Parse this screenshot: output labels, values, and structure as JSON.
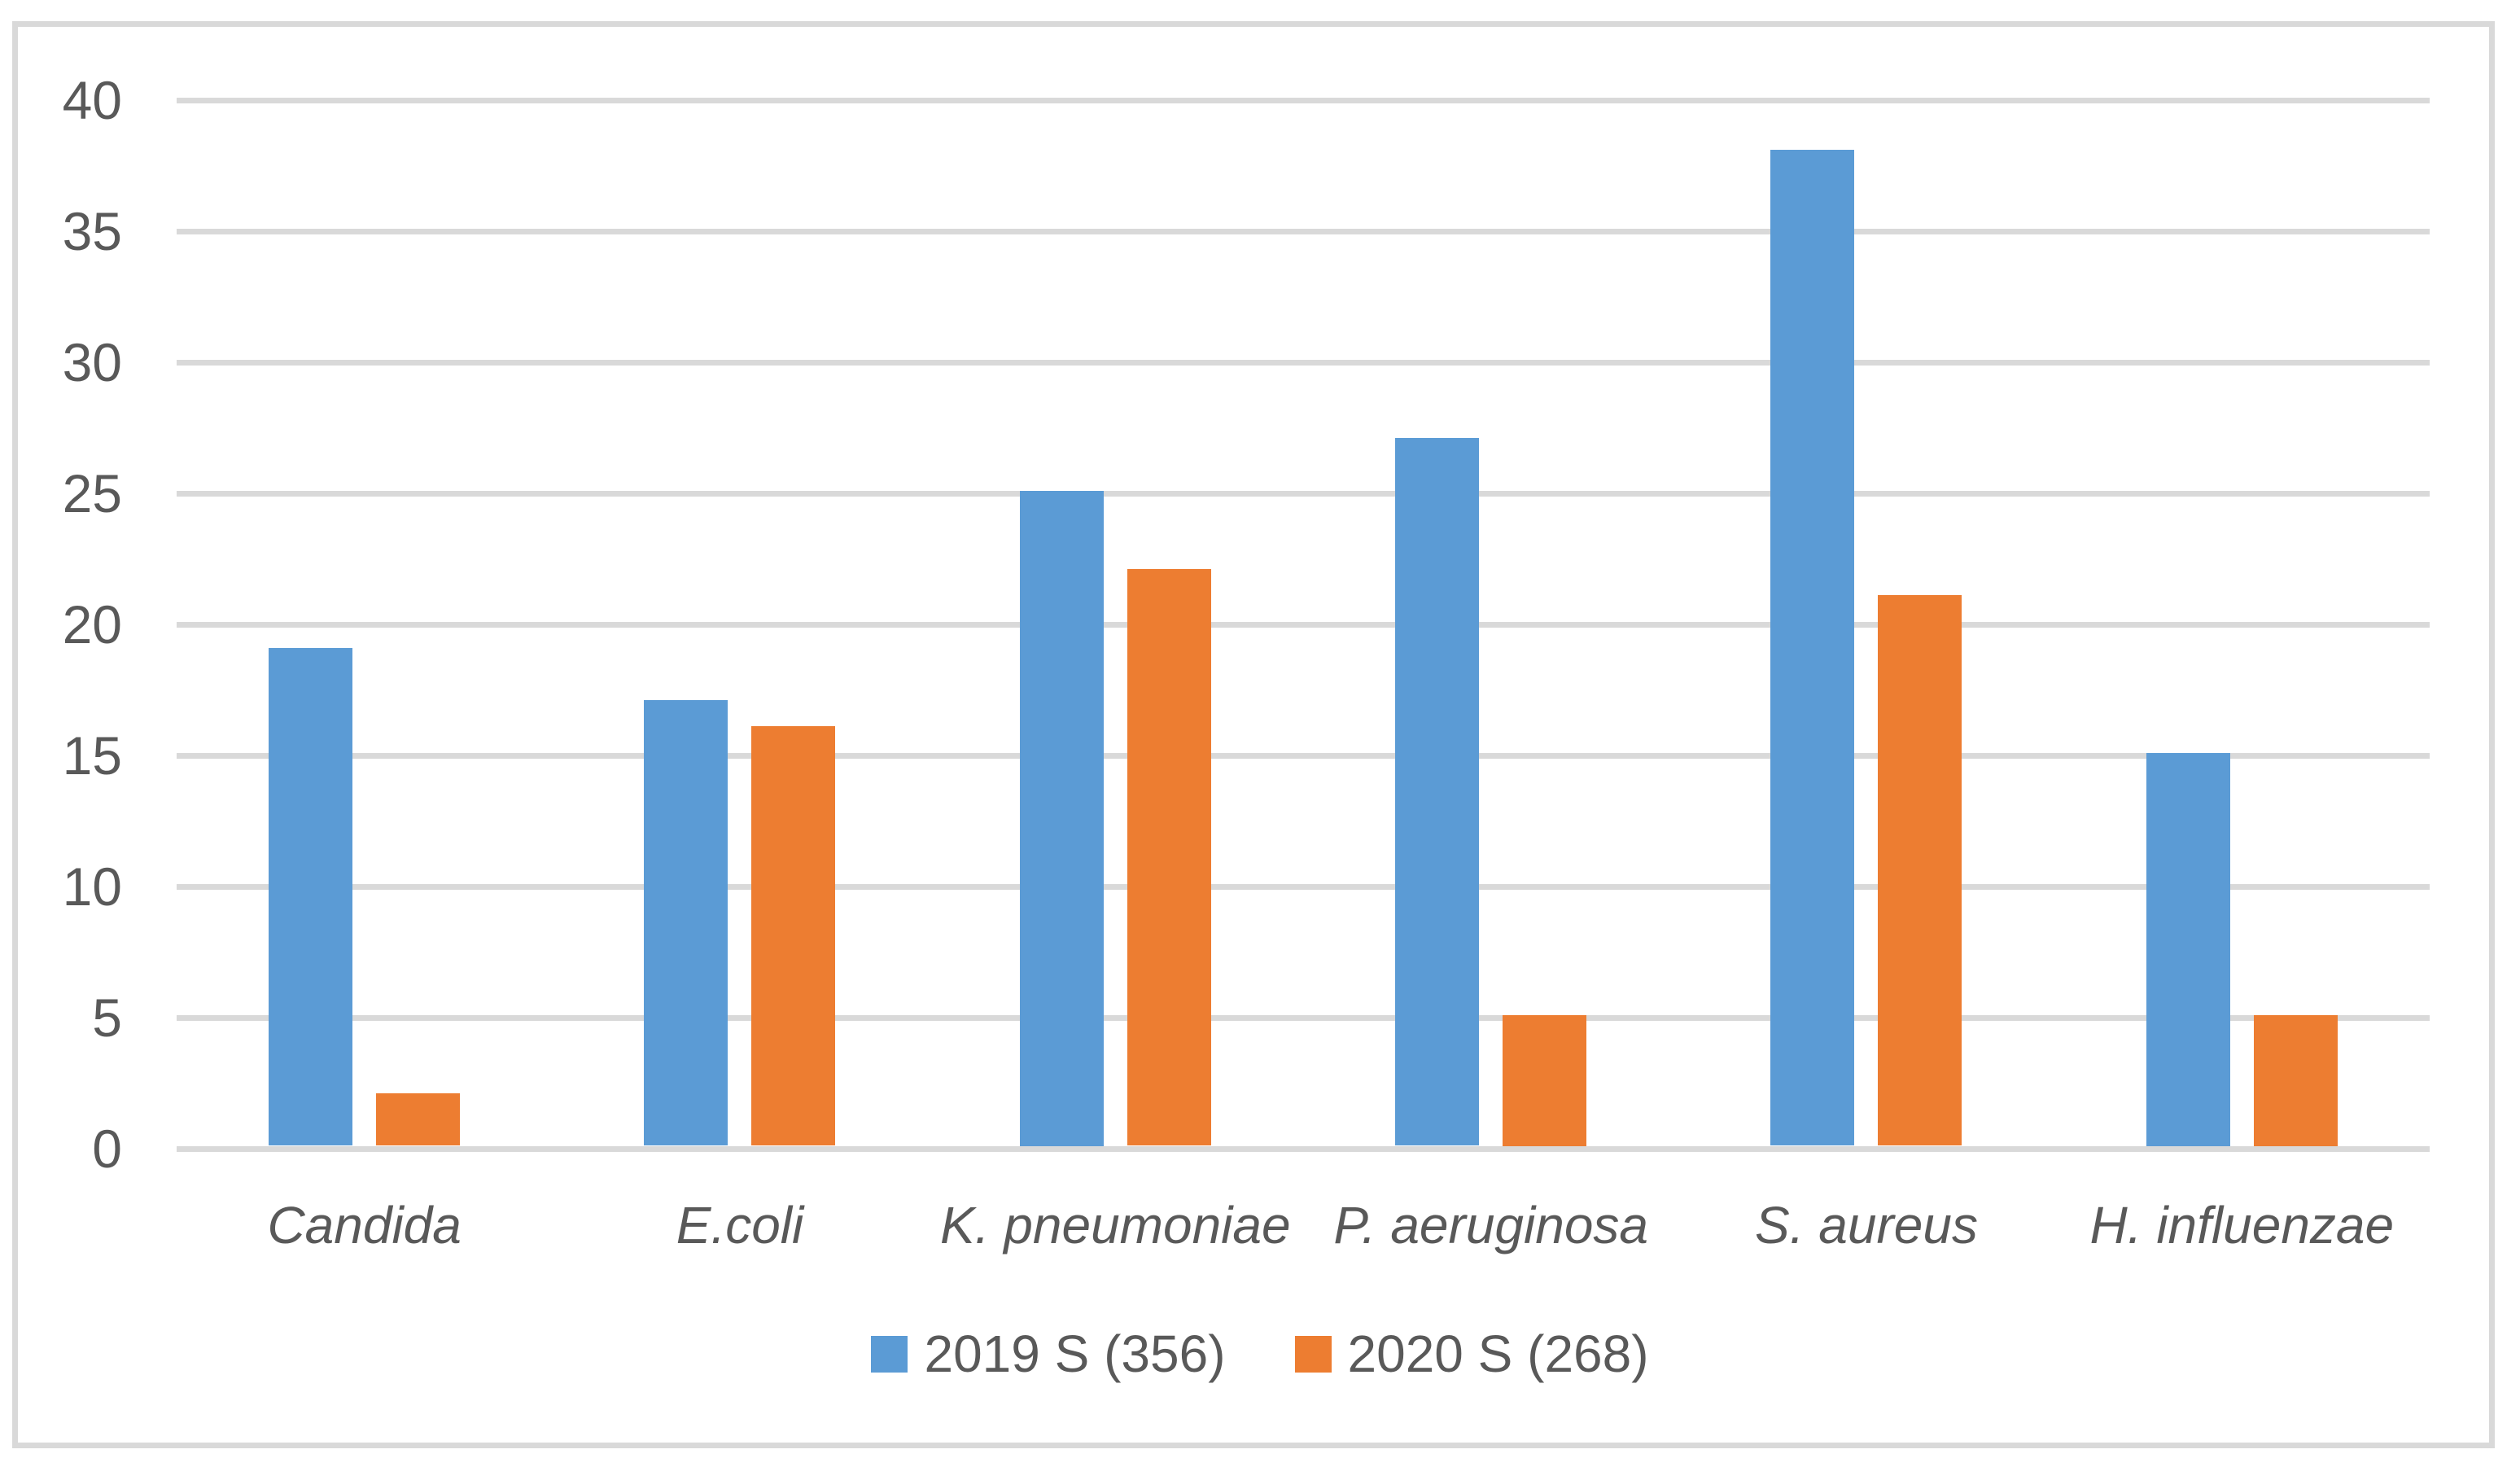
{
  "chart_data": {
    "type": "bar",
    "title": "",
    "xlabel": "",
    "ylabel": "",
    "categories": [
      "Candida",
      "E.coli",
      "K. pneumoniae",
      "P. aeruginosa",
      "S. aureus",
      "H. influenzae"
    ],
    "series": [
      {
        "name": "2019 S (356)",
        "color": "#5B9BD5",
        "values": [
          19,
          17,
          25,
          27,
          38,
          15
        ]
      },
      {
        "name": "2020 S (268)",
        "color": "#ED7D31",
        "values": [
          2,
          16,
          22,
          5,
          21,
          5
        ]
      }
    ],
    "ylim": [
      0,
      40
    ],
    "yticks": [
      0,
      5,
      10,
      15,
      20,
      25,
      30,
      35,
      40
    ],
    "grid": true,
    "legend_position": "bottom",
    "category_label_style": "italic",
    "colors": {
      "text": "#595959",
      "gridline": "#D9D9D9",
      "frame_border": "#D9D9D9",
      "background": "#FFFFFF"
    }
  }
}
